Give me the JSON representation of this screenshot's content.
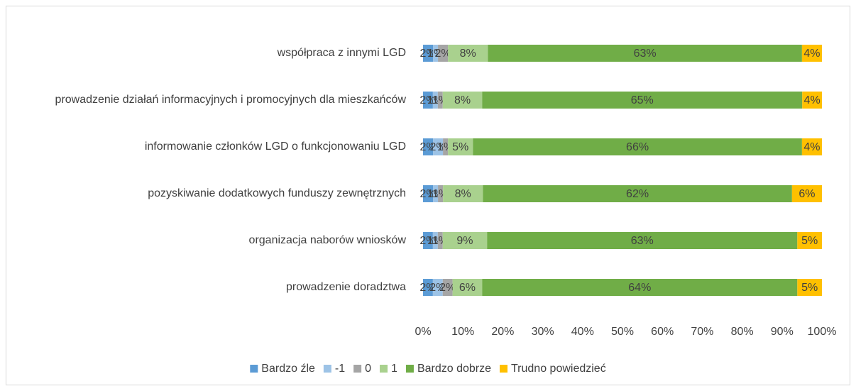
{
  "chart_data": {
    "type": "bar",
    "orientation": "horizontal",
    "stacking": "percent",
    "categories": [
      "współpraca z innymi LGD",
      "prowadzenie działań informacyjnych i promocyjnych dla mieszkańców",
      "informowanie członków LGD o funkcjonowaniu LGD",
      "pozyskiwanie dodatkowych funduszy zewnętrznych",
      "organizacja naborów wniosków",
      "prowadzenie doradztwa"
    ],
    "series": [
      {
        "name": "Bardzo źle",
        "color": "#5b9bd5",
        "values": [
          2,
          2,
          2,
          2,
          2,
          2
        ],
        "value_labels": [
          "2%",
          "2%",
          "2%",
          "2%",
          "2%",
          "2%"
        ]
      },
      {
        "name": "-1",
        "color": "#9dc3e6",
        "values": [
          1,
          1,
          2,
          1,
          1,
          2
        ],
        "value_labels": [
          "1%",
          "1%",
          "2%",
          "1%",
          "1%",
          "2%"
        ]
      },
      {
        "name": "0",
        "color": "#a5a5a5",
        "values": [
          2,
          1,
          1,
          1,
          1,
          2
        ],
        "value_labels": [
          "2%",
          "1%",
          "1%",
          "1%",
          "1%",
          "2%"
        ]
      },
      {
        "name": "1",
        "color": "#a9d18e",
        "values": [
          8,
          8,
          5,
          8,
          9,
          6
        ],
        "value_labels": [
          "8%",
          "8%",
          "5%",
          "8%",
          "9%",
          "6%"
        ]
      },
      {
        "name": "Bardzo dobrze",
        "color": "#70ad47",
        "values": [
          63,
          65,
          66,
          62,
          63,
          64
        ],
        "value_labels": [
          "63%",
          "65%",
          "66%",
          "62%",
          "63%",
          "64%"
        ]
      },
      {
        "name": "Trudno powiedzieć",
        "color": "#ffc000",
        "values": [
          4,
          4,
          4,
          6,
          5,
          5
        ],
        "value_labels": [
          "4%",
          "4%",
          "4%",
          "6%",
          "5%",
          "5%"
        ]
      }
    ],
    "xlim": [
      0,
      100
    ],
    "xticks": [
      {
        "value": 0,
        "label": "0%"
      },
      {
        "value": 10,
        "label": "10%"
      },
      {
        "value": 20,
        "label": "20%"
      },
      {
        "value": 30,
        "label": "30%"
      },
      {
        "value": 40,
        "label": "40%"
      },
      {
        "value": 50,
        "label": "50%"
      },
      {
        "value": 60,
        "label": "60%"
      },
      {
        "value": 70,
        "label": "70%"
      },
      {
        "value": 80,
        "label": "80%"
      },
      {
        "value": 90,
        "label": "90%"
      },
      {
        "value": 100,
        "label": "100%"
      }
    ],
    "grid": false,
    "legend": "bottom"
  }
}
